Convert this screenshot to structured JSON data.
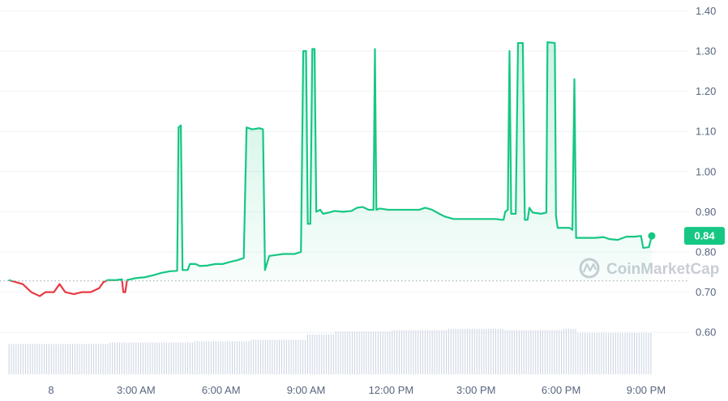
{
  "chart_data": {
    "type": "line",
    "title": "",
    "xlabel": "",
    "ylabel": "",
    "ylim": [
      0.5,
      1.42
    ],
    "x_ticks": [
      "8",
      "3:00 AM",
      "6:00 AM",
      "9:00 AM",
      "12:00 PM",
      "3:00 PM",
      "6:00 PM",
      "9:00 PM"
    ],
    "y_ticks": [
      "0.60",
      "0.70",
      "0.80",
      "0.90",
      "1.00",
      "1.10",
      "1.20",
      "1.30",
      "1.40"
    ],
    "baseline": 0.728,
    "current_value_label": "0.84",
    "current_value": 0.84,
    "grid": true,
    "colors": {
      "up": "#16c784",
      "down": "#ea3943",
      "axis_text": "#58667e",
      "grid": "#eff2f5",
      "volume": "#cfd6e4"
    },
    "series": [
      {
        "values": [
          [
            -1.5,
            0.73
          ],
          [
            -1.0,
            0.72
          ],
          [
            -0.7,
            0.7
          ],
          [
            -0.4,
            0.69
          ],
          [
            -0.2,
            0.7
          ],
          [
            0.1,
            0.7
          ],
          [
            0.3,
            0.72
          ],
          [
            0.5,
            0.7
          ],
          [
            0.8,
            0.695
          ],
          [
            1.1,
            0.7
          ],
          [
            1.4,
            0.7
          ],
          [
            1.7,
            0.71
          ],
          [
            1.85,
            0.725
          ],
          [
            2.0,
            0.73
          ],
          [
            2.3,
            0.73
          ],
          [
            2.5,
            0.732
          ],
          [
            2.55,
            0.7
          ],
          [
            2.62,
            0.7
          ],
          [
            2.68,
            0.73
          ],
          [
            3.0,
            0.735
          ],
          [
            3.3,
            0.737
          ],
          [
            3.6,
            0.742
          ],
          [
            3.9,
            0.748
          ],
          [
            4.2,
            0.752
          ],
          [
            4.45,
            0.753
          ],
          [
            4.5,
            1.11
          ],
          [
            4.58,
            1.115
          ],
          [
            4.64,
            0.755
          ],
          [
            4.82,
            0.755
          ],
          [
            4.9,
            0.77
          ],
          [
            5.1,
            0.77
          ],
          [
            5.25,
            0.765
          ],
          [
            5.5,
            0.766
          ],
          [
            5.8,
            0.77
          ],
          [
            6.05,
            0.77
          ],
          [
            6.3,
            0.775
          ],
          [
            6.6,
            0.78
          ],
          [
            6.8,
            0.785
          ],
          [
            6.9,
            1.11
          ],
          [
            7.1,
            1.105
          ],
          [
            7.35,
            1.108
          ],
          [
            7.48,
            1.105
          ],
          [
            7.55,
            0.755
          ],
          [
            7.7,
            0.79
          ],
          [
            7.9,
            0.792
          ],
          [
            8.2,
            0.795
          ],
          [
            8.6,
            0.795
          ],
          [
            8.82,
            0.8
          ],
          [
            8.9,
            1.3
          ],
          [
            9.0,
            1.3
          ],
          [
            9.06,
            0.87
          ],
          [
            9.15,
            0.87
          ],
          [
            9.22,
            1.305
          ],
          [
            9.3,
            1.305
          ],
          [
            9.36,
            0.9
          ],
          [
            9.5,
            0.905
          ],
          [
            9.6,
            0.895
          ],
          [
            9.8,
            0.898
          ],
          [
            10.0,
            0.902
          ],
          [
            10.3,
            0.9
          ],
          [
            10.6,
            0.902
          ],
          [
            10.8,
            0.91
          ],
          [
            11.0,
            0.912
          ],
          [
            11.2,
            0.905
          ],
          [
            11.38,
            0.905
          ],
          [
            11.43,
            1.305
          ],
          [
            11.48,
            0.905
          ],
          [
            11.6,
            0.908
          ],
          [
            11.9,
            0.905
          ],
          [
            12.2,
            0.905
          ],
          [
            12.6,
            0.905
          ],
          [
            13.0,
            0.905
          ],
          [
            13.2,
            0.91
          ],
          [
            13.45,
            0.905
          ],
          [
            13.7,
            0.895
          ],
          [
            13.9,
            0.888
          ],
          [
            14.2,
            0.882
          ],
          [
            14.6,
            0.882
          ],
          [
            15.0,
            0.882
          ],
          [
            15.4,
            0.882
          ],
          [
            15.7,
            0.882
          ],
          [
            15.9,
            0.88
          ],
          [
            15.97,
            0.88
          ],
          [
            16.03,
            0.9
          ],
          [
            16.12,
            0.905
          ],
          [
            16.18,
            1.3
          ],
          [
            16.24,
            0.895
          ],
          [
            16.4,
            0.895
          ],
          [
            16.48,
            1.32
          ],
          [
            16.65,
            1.32
          ],
          [
            16.72,
            0.88
          ],
          [
            16.82,
            0.88
          ],
          [
            16.88,
            0.91
          ],
          [
            17.0,
            0.898
          ],
          [
            17.3,
            0.895
          ],
          [
            17.48,
            0.898
          ],
          [
            17.52,
            1.322
          ],
          [
            17.78,
            1.32
          ],
          [
            17.82,
            0.89
          ],
          [
            17.88,
            0.86
          ],
          [
            18.3,
            0.86
          ],
          [
            18.4,
            0.855
          ],
          [
            18.47,
            1.23
          ],
          [
            18.53,
            0.835
          ],
          [
            18.8,
            0.835
          ],
          [
            19.2,
            0.835
          ],
          [
            19.5,
            0.837
          ],
          [
            19.7,
            0.832
          ],
          [
            20.0,
            0.83
          ],
          [
            20.3,
            0.838
          ],
          [
            20.6,
            0.838
          ],
          [
            20.82,
            0.84
          ],
          [
            20.9,
            0.81
          ],
          [
            21.1,
            0.812
          ],
          [
            21.2,
            0.84
          ]
        ]
      }
    ],
    "volume_x_range": [
      -1.5,
      21.2
    ],
    "volume_levels": [
      [
        -1.5,
        0.22
      ],
      [
        2.0,
        0.23
      ],
      [
        5.0,
        0.24
      ],
      [
        7.0,
        0.25
      ],
      [
        8.5,
        0.25
      ],
      [
        9.0,
        0.29
      ],
      [
        10.0,
        0.31
      ],
      [
        12.0,
        0.32
      ],
      [
        14.0,
        0.33
      ],
      [
        16.0,
        0.32
      ],
      [
        18.0,
        0.33
      ],
      [
        18.5,
        0.3
      ],
      [
        21.2,
        0.29
      ]
    ]
  },
  "watermark": {
    "text": "CoinMarketCap",
    "icon": "coinmarketcap-logo-icon"
  }
}
